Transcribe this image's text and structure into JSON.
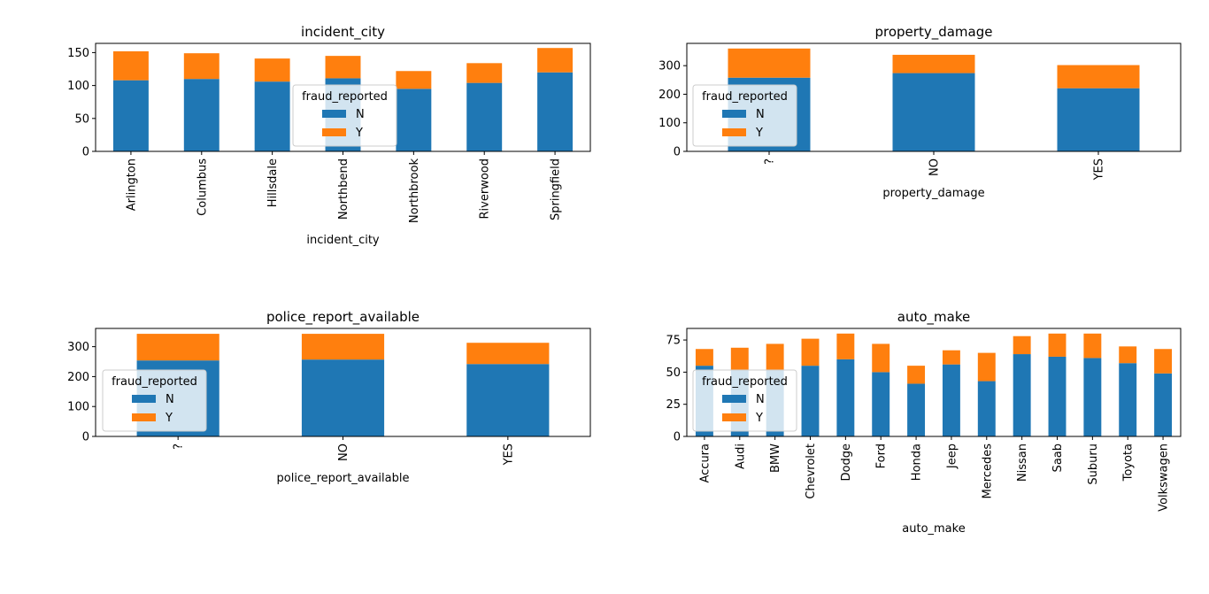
{
  "chart_data": [
    {
      "type": "bar",
      "stacked": true,
      "title": "incident_city",
      "xlabel": "incident_city",
      "ylabel": "",
      "categories": [
        "Arlington",
        "Columbus",
        "Hillsdale",
        "Northbend",
        "Northbrook",
        "Riverwood",
        "Springfield"
      ],
      "series": [
        {
          "name": "N",
          "values": [
            108,
            110,
            106,
            111,
            95,
            104,
            120
          ]
        },
        {
          "name": "Y",
          "values": [
            44,
            39,
            35,
            34,
            27,
            30,
            37
          ]
        }
      ],
      "ylim": [
        0,
        164
      ],
      "yticks": [
        0,
        50,
        100,
        150
      ],
      "legend": {
        "title": "fraud_reported",
        "placement": "center"
      },
      "grid": false,
      "colors": [
        "#1f77b4",
        "#ff7f0e"
      ]
    },
    {
      "type": "bar",
      "stacked": true,
      "title": "property_damage",
      "xlabel": "property_damage",
      "ylabel": "",
      "categories": [
        "?",
        "NO",
        "YES"
      ],
      "series": [
        {
          "name": "N",
          "values": [
            258,
            274,
            221
          ]
        },
        {
          "name": "Y",
          "values": [
            102,
            64,
            81
          ]
        }
      ],
      "ylim": [
        0,
        378
      ],
      "yticks": [
        0,
        100,
        200,
        300
      ],
      "legend": {
        "title": "fraud_reported",
        "placement": "center-left"
      },
      "grid": false,
      "colors": [
        "#1f77b4",
        "#ff7f0e"
      ]
    },
    {
      "type": "bar",
      "stacked": true,
      "title": "police_report_available",
      "xlabel": "police_report_available",
      "ylabel": "",
      "categories": [
        "?",
        "NO",
        "YES"
      ],
      "series": [
        {
          "name": "N",
          "values": [
            254,
            257,
            242
          ]
        },
        {
          "name": "Y",
          "values": [
            89,
            86,
            71
          ]
        }
      ],
      "ylim": [
        0,
        361
      ],
      "yticks": [
        0,
        100,
        200,
        300
      ],
      "legend": {
        "title": "fraud_reported",
        "placement": "lower-left"
      },
      "grid": false,
      "colors": [
        "#1f77b4",
        "#ff7f0e"
      ]
    },
    {
      "type": "bar",
      "stacked": true,
      "title": "auto_make",
      "xlabel": "auto_make",
      "ylabel": "",
      "categories": [
        "Accura",
        "Audi",
        "BMW",
        "Chevrolet",
        "Dodge",
        "Ford",
        "Honda",
        "Jeep",
        "Mercedes",
        "Nissan",
        "Saab",
        "Suburu",
        "Toyota",
        "Volkswagen"
      ],
      "series": [
        {
          "name": "N",
          "values": [
            55,
            52,
            52,
            55,
            60,
            50,
            41,
            56,
            43,
            64,
            62,
            61,
            57,
            49
          ]
        },
        {
          "name": "Y",
          "values": [
            13,
            17,
            20,
            21,
            20,
            22,
            14,
            11,
            22,
            14,
            18,
            19,
            13,
            19
          ]
        }
      ],
      "ylim": [
        0,
        84
      ],
      "yticks": [
        0,
        25,
        50,
        75
      ],
      "legend": {
        "title": "fraud_reported",
        "placement": "center-left"
      },
      "grid": false,
      "colors": [
        "#1f77b4",
        "#ff7f0e"
      ]
    }
  ]
}
